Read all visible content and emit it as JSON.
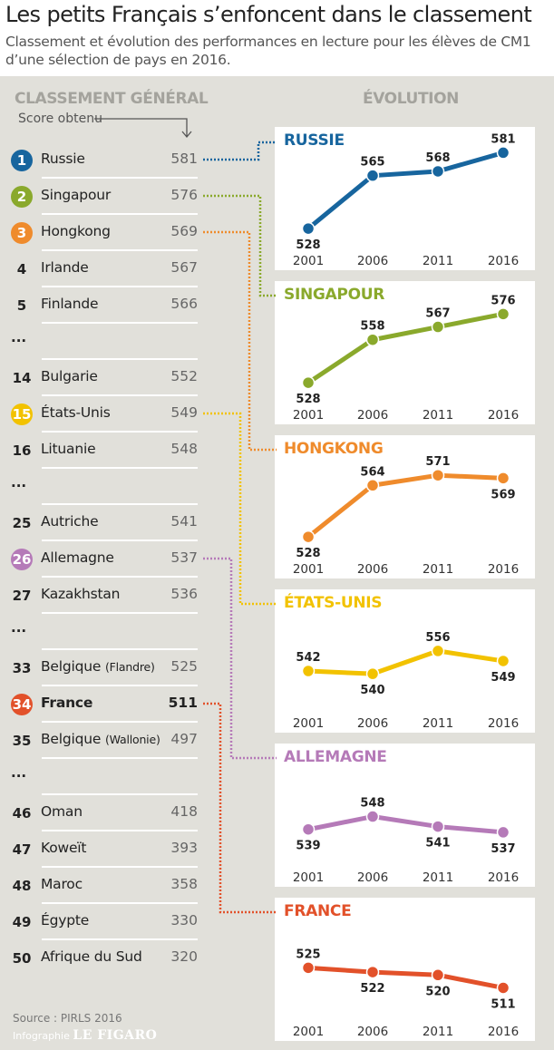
{
  "title": "Les petits Français s’enfoncent dans le classement",
  "subtitle": "Classement et évolution des performances en lecture pour les élèves de CM1 d’une sélection de pays en 2016.",
  "ranking": {
    "header": "CLASSEMENT GÉNÉRAL",
    "score_label": "Score obtenu",
    "rows": [
      {
        "rank": "1",
        "name": "Russie",
        "score": "581",
        "color": "#17659e"
      },
      {
        "rank": "2",
        "name": "Singapour",
        "score": "576",
        "color": "#8aa92c"
      },
      {
        "rank": "3",
        "name": "Hongkong",
        "score": "569",
        "color": "#ef8b2c"
      },
      {
        "rank": "4",
        "name": "Irlande",
        "score": "567"
      },
      {
        "rank": "5",
        "name": "Finlande",
        "score": "566"
      },
      {
        "rank": "...",
        "name": "",
        "score": ""
      },
      {
        "rank": "14",
        "name": "Bulgarie",
        "score": "552"
      },
      {
        "rank": "15",
        "name": "États-Unis",
        "score": "549",
        "color": "#f2c200"
      },
      {
        "rank": "16",
        "name": "Lituanie",
        "score": "548"
      },
      {
        "rank": "...",
        "name": "",
        "score": ""
      },
      {
        "rank": "25",
        "name": "Autriche",
        "score": "541"
      },
      {
        "rank": "26",
        "name": "Allemagne",
        "score": "537",
        "color": "#b57ab8"
      },
      {
        "rank": "27",
        "name": "Kazakhstan",
        "score": "536"
      },
      {
        "rank": "...",
        "name": "",
        "score": ""
      },
      {
        "rank": "33",
        "name": "Belgique",
        "note": "(Flandre)",
        "score": "525"
      },
      {
        "rank": "34",
        "name": "France",
        "score": "511",
        "color": "#e2512a",
        "highlight": true
      },
      {
        "rank": "35",
        "name": "Belgique",
        "note": "(Wallonie)",
        "score": "497"
      },
      {
        "rank": "...",
        "name": "",
        "score": ""
      },
      {
        "rank": "46",
        "name": "Oman",
        "score": "418"
      },
      {
        "rank": "47",
        "name": "Koweït",
        "score": "393"
      },
      {
        "rank": "48",
        "name": "Maroc",
        "score": "358"
      },
      {
        "rank": "49",
        "name": "Égypte",
        "score": "330"
      },
      {
        "rank": "50",
        "name": "Afrique du Sud",
        "score": "320"
      }
    ]
  },
  "evolution_header": "ÉVOLUTION",
  "chart_data": [
    {
      "type": "line",
      "title": "RUSSIE",
      "color": "#17659e",
      "x": [
        "2001",
        "2006",
        "2011",
        "2016"
      ],
      "values": [
        528,
        565,
        568,
        581
      ],
      "ylim": [
        523,
        599
      ]
    },
    {
      "type": "line",
      "title": "SINGAPOUR",
      "color": "#8aa92c",
      "x": [
        "2001",
        "2006",
        "2011",
        "2016"
      ],
      "values": [
        528,
        558,
        567,
        576
      ],
      "ylim": [
        523,
        599
      ]
    },
    {
      "type": "line",
      "title": "HONGKONG",
      "color": "#ef8b2c",
      "x": [
        "2001",
        "2006",
        "2011",
        "2016"
      ],
      "values": [
        528,
        564,
        571,
        569
      ],
      "ylim": [
        523,
        599
      ]
    },
    {
      "type": "line",
      "title": "ÉTATS-UNIS",
      "color": "#f2c200",
      "x": [
        "2001",
        "2006",
        "2011",
        "2016"
      ],
      "values": [
        542,
        540,
        556,
        549
      ],
      "ylim": [
        523,
        599
      ]
    },
    {
      "type": "line",
      "title": "ALLEMAGNE",
      "color": "#b57ab8",
      "x": [
        "2001",
        "2006",
        "2011",
        "2016"
      ],
      "values": [
        539,
        548,
        541,
        537
      ],
      "ylim": [
        523,
        599
      ]
    },
    {
      "type": "line",
      "title": "FRANCE",
      "color": "#e2512a",
      "x": [
        "2001",
        "2006",
        "2011",
        "2016"
      ],
      "values": [
        525,
        522,
        520,
        511
      ],
      "ylim": [
        498,
        574
      ]
    }
  ],
  "source": "Source : PIRLS 2016",
  "credit": {
    "prefix": "Infographie",
    "brand": "LE FIGARO"
  }
}
